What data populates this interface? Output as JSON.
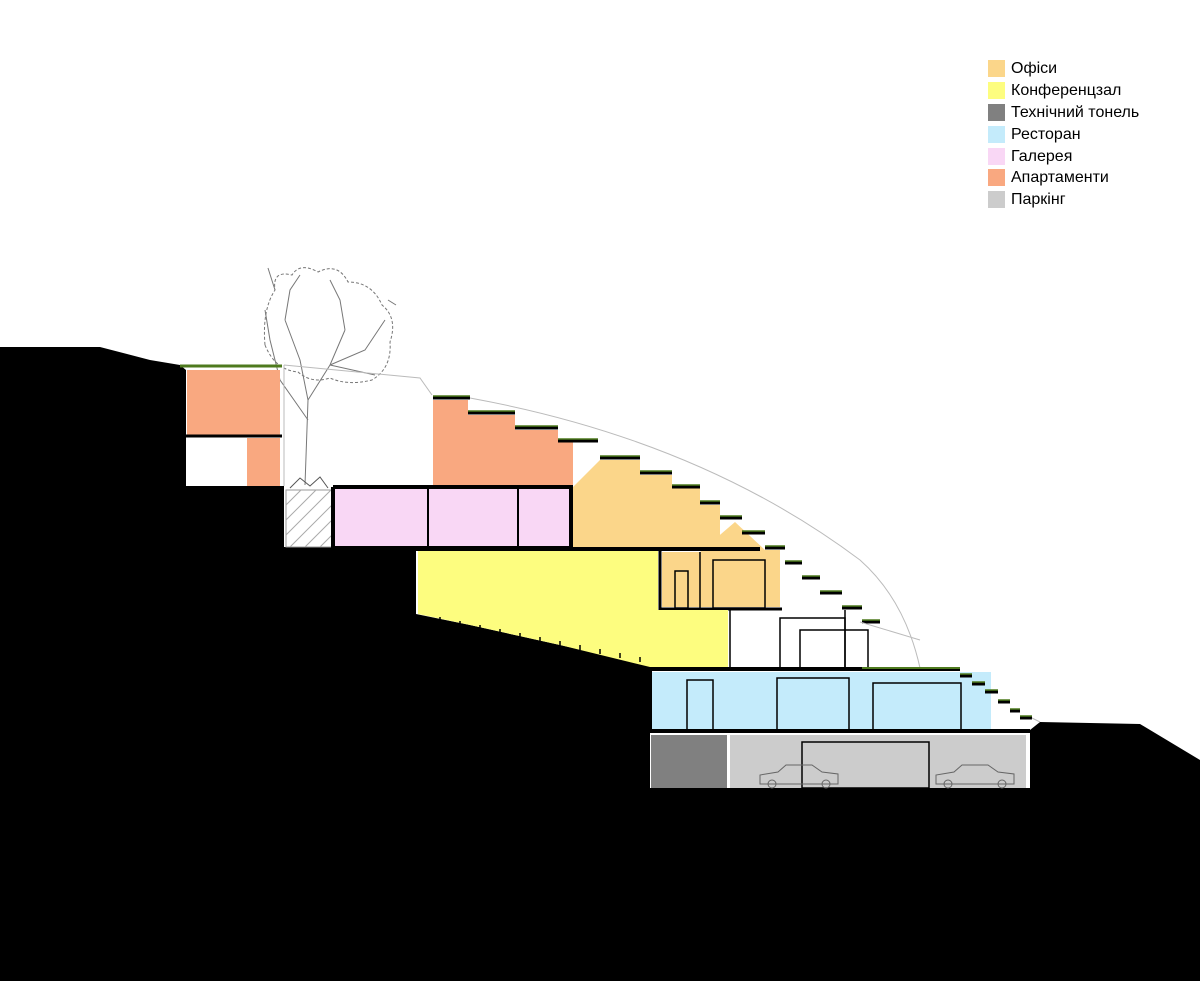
{
  "colors": {
    "ground": "#000000",
    "offices": "#fbd68a",
    "conference": "#fdfd7f",
    "tunnel": "#808080",
    "restaurant": "#c4ebfb",
    "gallery": "#f9d7f5",
    "apartments": "#f9a880",
    "parking": "#cccccc",
    "roof_green": "#4e7a1e",
    "line": "#000000"
  },
  "legend": {
    "items": [
      {
        "key": "offices",
        "label": "Офіси"
      },
      {
        "key": "conference",
        "label": "Конференцзал"
      },
      {
        "key": "tunnel",
        "label": "Технічний тонель"
      },
      {
        "key": "restaurant",
        "label": "Ресторан"
      },
      {
        "key": "gallery",
        "label": "Галерея"
      },
      {
        "key": "apartments",
        "label": "Апартаменти"
      },
      {
        "key": "parking",
        "label": "Паркінг"
      }
    ]
  }
}
